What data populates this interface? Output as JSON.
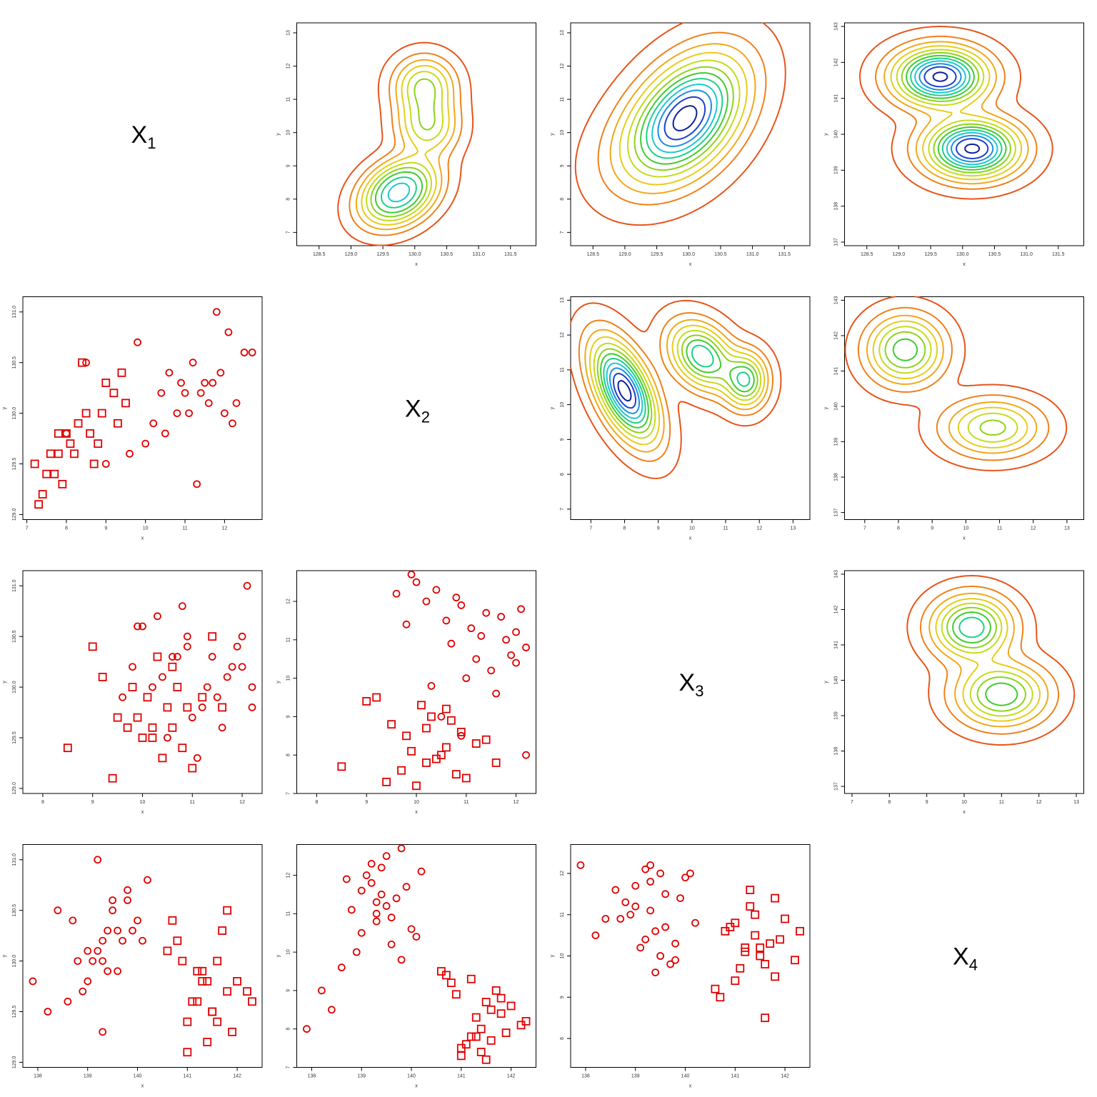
{
  "chart_data": {
    "type": "pairs",
    "variables": [
      {
        "name": "X",
        "sub": "1"
      },
      {
        "name": "X",
        "sub": "2"
      },
      {
        "name": "X",
        "sub": "3"
      },
      {
        "name": "X",
        "sub": "4"
      }
    ],
    "marker_color": "#e00000",
    "contour_colors": [
      "#e8541a",
      "#f0801a",
      "#f2a81a",
      "#e8cc1a",
      "#c4dc1a",
      "#8cd41a",
      "#40cc30",
      "#1ed08a",
      "#1ec8d0",
      "#1e90e0",
      "#1e40d0",
      "#10209c"
    ],
    "x_label": "x",
    "y_label": "y",
    "groups": [
      {
        "marker": "circle",
        "values": [
          [
            130.3,
            11.5,
            10.6,
            139.4
          ],
          [
            130.0,
            12.0,
            10.2,
            139.1
          ],
          [
            130.6,
            12.7,
            9.9,
            139.8
          ],
          [
            129.8,
            10.5,
            11.2,
            139.0
          ],
          [
            130.2,
            11.0,
            11.8,
            139.3
          ],
          [
            130.4,
            11.9,
            10.9,
            138.7
          ],
          [
            129.9,
            10.2,
            11.5,
            139.6
          ],
          [
            130.1,
            12.3,
            10.4,
            139.2
          ],
          [
            130.5,
            11.2,
            12.0,
            139.5
          ],
          [
            129.7,
            10.0,
            11.0,
            138.9
          ],
          [
            130.3,
            11.7,
            11.4,
            139.9
          ],
          [
            130.0,
            10.8,
            12.2,
            139.3
          ],
          [
            130.8,
            12.1,
            10.8,
            140.2
          ],
          [
            129.6,
            9.6,
            11.6,
            138.6
          ],
          [
            130.2,
            11.4,
            9.8,
            139.7
          ],
          [
            130.4,
            10.6,
            11.9,
            140.0
          ],
          [
            131.0,
            11.8,
            12.1,
            139.2
          ],
          [
            129.5,
            9.0,
            10.5,
            138.2
          ],
          [
            130.6,
            12.5,
            10.0,
            139.5
          ],
          [
            130.0,
            11.1,
            11.3,
            138.8
          ],
          [
            129.8,
            8.0,
            12.2,
            137.9
          ],
          [
            130.3,
            10.9,
            10.7,
            139.6
          ],
          [
            130.1,
            11.6,
            11.7,
            139.0
          ],
          [
            129.9,
            12.2,
            9.6,
            139.4
          ],
          [
            130.5,
            8.5,
            10.9,
            138.4
          ],
          [
            130.2,
            10.4,
            12.0,
            140.1
          ],
          [
            129.3,
            11.3,
            11.1,
            139.3
          ],
          [
            130.7,
            9.8,
            10.3,
            139.8
          ]
        ]
      },
      {
        "marker": "square",
        "values": [
          [
            129.8,
            8.0,
            10.5,
            141.4
          ],
          [
            129.6,
            7.8,
            10.2,
            141.2
          ],
          [
            130.0,
            8.5,
            9.8,
            141.6
          ],
          [
            129.4,
            7.5,
            10.8,
            141.0
          ],
          [
            129.7,
            8.8,
            9.5,
            141.8
          ],
          [
            130.2,
            9.2,
            10.6,
            140.8
          ],
          [
            129.5,
            7.2,
            10.0,
            141.5
          ],
          [
            129.9,
            8.3,
            11.2,
            141.3
          ],
          [
            129.3,
            7.9,
            10.4,
            141.9
          ],
          [
            130.1,
            9.5,
            9.2,
            140.6
          ],
          [
            129.8,
            8.6,
            10.9,
            142.0
          ],
          [
            129.6,
            7.6,
            9.7,
            141.1
          ],
          [
            130.3,
            9.0,
            10.3,
            141.7
          ],
          [
            129.2,
            7.4,
            11.0,
            141.4
          ],
          [
            129.7,
            8.1,
            9.9,
            142.2
          ],
          [
            130.0,
            8.9,
            10.7,
            140.9
          ],
          [
            129.4,
            7.7,
            8.5,
            141.6
          ],
          [
            129.9,
            9.3,
            10.1,
            141.2
          ],
          [
            130.5,
            8.4,
            11.4,
            141.8
          ],
          [
            129.1,
            7.3,
            9.4,
            141.0
          ],
          [
            129.6,
            8.2,
            10.6,
            142.3
          ],
          [
            130.4,
            9.4,
            9.0,
            140.7
          ],
          [
            129.5,
            8.7,
            10.2,
            141.5
          ],
          [
            129.8,
            7.8,
            11.6,
            141.3
          ]
        ]
      }
    ],
    "panels": [
      {
        "kind": "contour",
        "x_var": 0,
        "y_var": 1,
        "xlim": [
          128.15,
          131.9
        ],
        "ylim": [
          6.6,
          13.3
        ],
        "xticks": [
          128.5,
          {
            "value": 129,
            "label": "129.0"
          },
          129.5,
          {
            "value": 130,
            "label": "130.0"
          },
          130.5,
          {
            "value": 131,
            "label": "131.0"
          },
          131.5
        ],
        "yticks": [
          7,
          8,
          9,
          10,
          11,
          12,
          13
        ],
        "components": [
          {
            "mx": 129.75,
            "my": 8.2,
            "sx": 0.36,
            "sy": 0.6,
            "rho": 0.3,
            "w": 0.55
          },
          {
            "mx": 130.2,
            "my": 10.2,
            "sx": 0.3,
            "sy": 0.55,
            "rho": 0,
            "w": 0.2
          },
          {
            "mx": 130.15,
            "my": 11.4,
            "sx": 0.3,
            "sy": 0.55,
            "rho": 0,
            "w": 0.22
          }
        ],
        "levels": [
          0.03,
          0.1,
          0.18,
          0.27,
          0.37,
          0.48,
          0.6,
          0.75,
          0.9
        ]
      },
      {
        "kind": "contour",
        "x_var": 0,
        "y_var": 2,
        "xlim": [
          128.15,
          131.9
        ],
        "ylim": [
          6.6,
          13.3
        ],
        "xticks": [
          128.5,
          {
            "value": 129,
            "label": "129.0"
          },
          129.5,
          {
            "value": 130,
            "label": "130.0"
          },
          130.5,
          {
            "value": 131,
            "label": "131.0"
          },
          131.5
        ],
        "yticks": [
          7,
          8,
          9,
          10,
          11,
          12,
          13
        ],
        "components": [
          {
            "mx": 130.0,
            "my": 10.6,
            "sx": 0.55,
            "sy": 1.1,
            "rho": 0.4,
            "w": 0.8
          },
          {
            "mx": 129.6,
            "my": 9.6,
            "sx": 0.6,
            "sy": 1.0,
            "rho": 0.3,
            "w": 0.2
          }
        ],
        "levels": [
          0.02,
          0.08,
          0.15,
          0.23,
          0.32,
          0.41,
          0.5,
          0.59,
          0.68,
          0.77,
          0.86,
          0.95
        ]
      },
      {
        "kind": "contour",
        "x_var": 0,
        "y_var": 3,
        "xlim": [
          128.15,
          131.9
        ],
        "ylim": [
          136.9,
          143.1
        ],
        "xticks": [
          128.5,
          {
            "value": 129,
            "label": "129.0"
          },
          129.5,
          {
            "value": 130,
            "label": "130.0"
          },
          130.5,
          {
            "value": 131,
            "label": "131.0"
          },
          131.5
        ],
        "yticks": [
          137,
          138,
          139,
          140,
          141,
          142,
          143
        ],
        "components": [
          {
            "mx": 129.65,
            "my": 141.6,
            "sx": 0.45,
            "sy": 0.5,
            "rho": 0,
            "w": 0.5
          },
          {
            "mx": 130.15,
            "my": 139.6,
            "sx": 0.45,
            "sy": 0.5,
            "rho": 0,
            "w": 0.5
          }
        ],
        "levels": [
          0.02,
          0.08,
          0.15,
          0.23,
          0.32,
          0.41,
          0.5,
          0.59,
          0.68,
          0.77,
          0.86,
          0.97
        ]
      },
      {
        "kind": "scatter",
        "x_var": 1,
        "y_var": 0,
        "xlim": [
          6.9,
          12.95
        ],
        "ylim": [
          128.95,
          131.15
        ],
        "xticks": [
          7,
          8,
          9,
          10,
          11,
          12
        ],
        "yticks": [
          {
            "value": 129,
            "label": "129.0"
          },
          129.5,
          {
            "value": 130,
            "label": "130.0"
          },
          130.5,
          {
            "value": 131,
            "label": "131.0"
          }
        ]
      },
      {
        "kind": "contour",
        "x_var": 1,
        "y_var": 2,
        "xlim": [
          6.4,
          13.5
        ],
        "ylim": [
          6.7,
          13.1
        ],
        "xticks": [
          7,
          8,
          9,
          10,
          11,
          12,
          13
        ],
        "yticks": [
          7,
          8,
          9,
          10,
          11,
          12,
          13
        ],
        "components": [
          {
            "mx": 8.0,
            "my": 10.4,
            "sx": 0.6,
            "sy": 0.9,
            "rho": -0.55,
            "w": 0.55
          },
          {
            "mx": 10.3,
            "my": 11.4,
            "sx": 0.6,
            "sy": 0.6,
            "rho": -0.3,
            "w": 0.28
          },
          {
            "mx": 11.6,
            "my": 10.7,
            "sx": 0.4,
            "sy": 0.5,
            "rho": 0,
            "w": 0.14
          }
        ],
        "levels": [
          0.02,
          0.08,
          0.15,
          0.23,
          0.32,
          0.41,
          0.5,
          0.59,
          0.68,
          0.77,
          0.86,
          0.95
        ]
      },
      {
        "kind": "contour",
        "x_var": 1,
        "y_var": 3,
        "xlim": [
          6.4,
          13.5
        ],
        "ylim": [
          136.8,
          143.1
        ],
        "xticks": [
          7,
          8,
          9,
          10,
          11,
          12,
          13
        ],
        "yticks": [
          137,
          138,
          139,
          140,
          141,
          142,
          143
        ],
        "components": [
          {
            "mx": 8.2,
            "my": 141.6,
            "sx": 0.7,
            "sy": 0.6,
            "rho": 0,
            "w": 0.55
          },
          {
            "mx": 10.8,
            "my": 139.4,
            "sx": 0.9,
            "sy": 0.5,
            "rho": 0,
            "w": 0.45
          }
        ],
        "levels": [
          0.04,
          0.14,
          0.27,
          0.4,
          0.55,
          0.7,
          0.88
        ]
      },
      {
        "kind": "scatter",
        "x_var": 2,
        "y_var": 0,
        "xlim": [
          7.6,
          12.4
        ],
        "ylim": [
          128.95,
          131.15
        ],
        "xticks": [
          8,
          9,
          10,
          11,
          12
        ],
        "yticks": [
          {
            "value": 129,
            "label": "129.0"
          },
          129.5,
          {
            "value": 130,
            "label": "130.0"
          },
          130.5,
          {
            "value": 131,
            "label": "131.0"
          }
        ]
      },
      {
        "kind": "scatter",
        "x_var": 2,
        "y_var": 1,
        "xlim": [
          7.6,
          12.4
        ],
        "ylim": [
          7.0,
          12.8
        ],
        "xticks": [
          8,
          9,
          10,
          11,
          12
        ],
        "yticks": [
          7,
          8,
          9,
          10,
          11,
          12
        ]
      },
      {
        "kind": "contour",
        "x_var": 2,
        "y_var": 3,
        "xlim": [
          6.8,
          13.2
        ],
        "ylim": [
          136.8,
          143.1
        ],
        "xticks": [
          7,
          8,
          9,
          10,
          11,
          12,
          13
        ],
        "yticks": [
          137,
          138,
          139,
          140,
          141,
          142,
          143
        ],
        "components": [
          {
            "mx": 10.2,
            "my": 141.5,
            "sx": 0.65,
            "sy": 0.55,
            "rho": 0,
            "w": 0.5
          },
          {
            "mx": 11.0,
            "my": 139.6,
            "sx": 0.75,
            "sy": 0.55,
            "rho": 0,
            "w": 0.5
          }
        ],
        "levels": [
          0.03,
          0.11,
          0.22,
          0.34,
          0.47,
          0.6,
          0.74,
          0.88
        ]
      },
      {
        "kind": "scatter",
        "x_var": 3,
        "y_var": 0,
        "xlim": [
          137.7,
          142.5
        ],
        "ylim": [
          128.95,
          131.15
        ],
        "xticks": [
          138,
          139,
          140,
          141,
          142
        ],
        "yticks": [
          {
            "value": 129,
            "label": "129.0"
          },
          129.5,
          {
            "value": 130,
            "label": "130.0"
          },
          130.5,
          {
            "value": 131,
            "label": "131.0"
          }
        ]
      },
      {
        "kind": "scatter",
        "x_var": 3,
        "y_var": 1,
        "xlim": [
          137.7,
          142.5
        ],
        "ylim": [
          7.0,
          12.8
        ],
        "xticks": [
          138,
          139,
          140,
          141,
          142
        ],
        "yticks": [
          7,
          8,
          9,
          10,
          11,
          12
        ]
      },
      {
        "kind": "scatter",
        "x_var": 3,
        "y_var": 2,
        "xlim": [
          137.7,
          142.5
        ],
        "ylim": [
          7.3,
          12.7
        ],
        "xticks": [
          138,
          139,
          140,
          141,
          142
        ],
        "yticks": [
          8,
          9,
          10,
          11,
          12
        ]
      }
    ]
  }
}
